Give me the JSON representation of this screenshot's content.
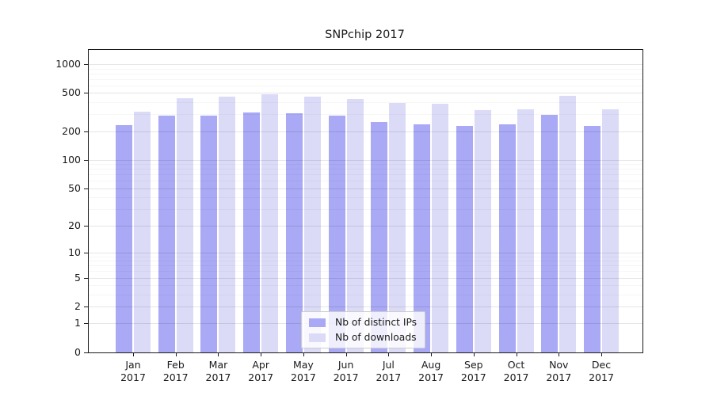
{
  "title": "SNPchip 2017",
  "colors": {
    "ips": "#a9a9f5",
    "downloads": "#dbdbf8",
    "grid_major": "rgba(0,0,0,0.10)",
    "grid_minor": "rgba(0,0,0,0.035)",
    "axis": "#1a1a1a"
  },
  "legend": {
    "items": [
      {
        "key": "ips",
        "label": "Nb of distinct IPs"
      },
      {
        "key": "downloads",
        "label": "Nb of downloads"
      }
    ]
  },
  "chart_data": {
    "type": "bar",
    "title": "SNPchip 2017",
    "categories": [
      "Jan 2017",
      "Feb 2017",
      "Mar 2017",
      "Apr 2017",
      "May 2017",
      "Jun 2017",
      "Jul 2017",
      "Aug 2017",
      "Sep 2017",
      "Oct 2017",
      "Nov 2017",
      "Dec 2017"
    ],
    "series": [
      {
        "key": "ips",
        "name": "Nb of distinct IPs",
        "color": "#a9a9f5",
        "values": [
          230,
          290,
          291,
          316,
          305,
          290,
          248,
          234,
          225,
          236,
          295,
          226
        ]
      },
      {
        "key": "downloads",
        "name": "Nb of downloads",
        "color": "#dbdbf8",
        "values": [
          319,
          441,
          462,
          486,
          456,
          437,
          391,
          390,
          329,
          340,
          466,
          336
        ]
      }
    ],
    "xlabel": "",
    "ylabel": "",
    "yscale": "log1p",
    "ylim": [
      0,
      1000
    ],
    "yticks": [
      0,
      1,
      2,
      5,
      10,
      20,
      50,
      100,
      200,
      500,
      1000
    ],
    "minor_gridlines": [
      3,
      4,
      6,
      7,
      8,
      9,
      30,
      40,
      60,
      70,
      80,
      90,
      300,
      400,
      600,
      700,
      800,
      900
    ],
    "grid": true,
    "legend_position": "lower center"
  }
}
